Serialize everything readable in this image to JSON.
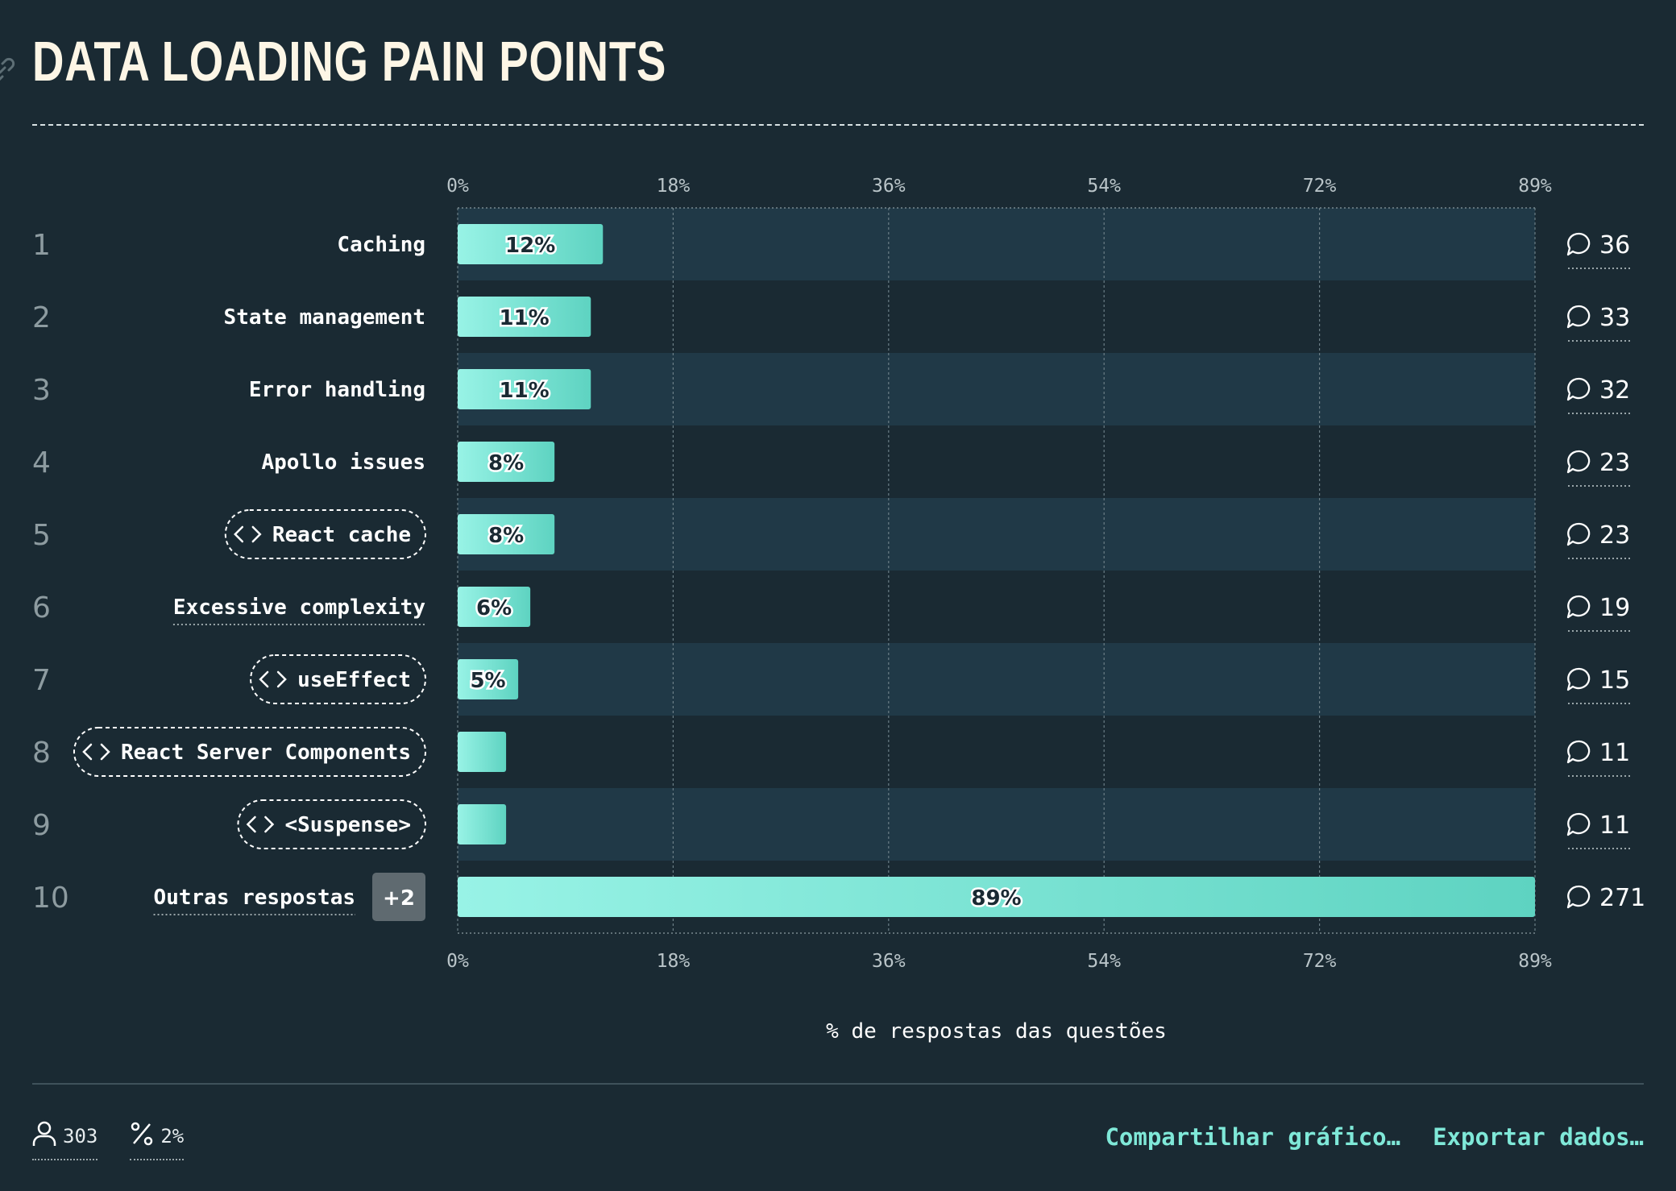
{
  "title": "DATA LOADING PAIN POINTS",
  "chart_data": {
    "type": "bar",
    "orientation": "horizontal",
    "x_axis": {
      "ticks": [
        "0%",
        "18%",
        "36%",
        "54%",
        "72%",
        "89%"
      ],
      "min": 0,
      "max": 89,
      "label": "% de respostas das questões"
    },
    "grid": true,
    "rows": [
      {
        "rank": "1",
        "label": "Caching",
        "value": 12,
        "value_label": "12%",
        "count": "36",
        "style": "plain"
      },
      {
        "rank": "2",
        "label": "State management",
        "value": 11,
        "value_label": "11%",
        "count": "33",
        "style": "plain"
      },
      {
        "rank": "3",
        "label": "Error handling",
        "value": 11,
        "value_label": "11%",
        "count": "32",
        "style": "plain"
      },
      {
        "rank": "4",
        "label": "Apollo issues",
        "value": 8,
        "value_label": "8%",
        "count": "23",
        "style": "plain"
      },
      {
        "rank": "5",
        "label": "React cache",
        "value": 8,
        "value_label": "8%",
        "count": "23",
        "style": "code"
      },
      {
        "rank": "6",
        "label": "Excessive complexity",
        "value": 6,
        "value_label": "6%",
        "count": "19",
        "style": "underline"
      },
      {
        "rank": "7",
        "label": "useEffect",
        "value": 5,
        "value_label": "5%",
        "count": "15",
        "style": "code"
      },
      {
        "rank": "8",
        "label": "React Server Components",
        "value": 4,
        "value_label": "",
        "count": "11",
        "style": "code"
      },
      {
        "rank": "9",
        "label": "<Suspense>",
        "value": 4,
        "value_label": "",
        "count": "11",
        "style": "code"
      },
      {
        "rank": "10",
        "label": "Outras respostas",
        "value": 89,
        "value_label": "89%",
        "count": "271",
        "style": "underline",
        "badge": "+2"
      }
    ],
    "colors": {
      "bar_start": "#98f3e6",
      "bar_end": "#5ed3c1",
      "stripe": "#203947"
    }
  },
  "footer": {
    "respondents": "303",
    "percentage": "2%",
    "share_label": "Compartilhar gráfico…",
    "export_label": "Exportar dados…"
  }
}
